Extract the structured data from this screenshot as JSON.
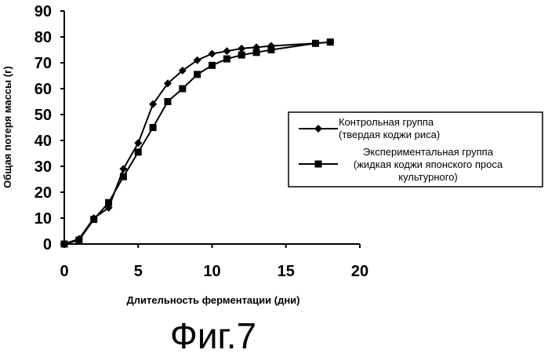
{
  "chart_data": {
    "type": "line",
    "xlabel": "Длительность ферментации (дни)",
    "ylabel": "Общая потеря массы (г)",
    "xlim": [
      0,
      20
    ],
    "ylim": [
      0,
      90
    ],
    "x_ticks": [
      "0",
      "5",
      "10",
      "15",
      "20"
    ],
    "y_ticks": [
      "0",
      "10",
      "20",
      "30",
      "40",
      "50",
      "60",
      "70",
      "80",
      "90"
    ],
    "grid": false,
    "legend_position": "right",
    "series": [
      {
        "name_lines": [
          "Контрольная группа",
          "(твердая коджи риса)"
        ],
        "marker": "diamond",
        "color": "#000000",
        "points": [
          [
            0,
            0
          ],
          [
            1,
            2
          ],
          [
            2,
            10
          ],
          [
            3,
            14
          ],
          [
            4,
            29
          ],
          [
            5,
            39
          ],
          [
            6,
            54
          ],
          [
            7,
            62
          ],
          [
            8,
            67
          ],
          [
            9,
            71
          ],
          [
            10,
            73.5
          ],
          [
            11,
            74.5
          ],
          [
            12,
            75.5
          ],
          [
            13,
            76
          ],
          [
            14,
            76.5
          ],
          [
            17,
            77.5
          ],
          [
            18,
            78
          ]
        ]
      },
      {
        "name_lines": [
          "Экспериментальная группа",
          "(жидкая коджи японского проса",
          "культурного)"
        ],
        "marker": "square",
        "color": "#000000",
        "points": [
          [
            0,
            0
          ],
          [
            1,
            1.5
          ],
          [
            2,
            9.5
          ],
          [
            3,
            16
          ],
          [
            4,
            26
          ],
          [
            5,
            35.5
          ],
          [
            6,
            45
          ],
          [
            7,
            55
          ],
          [
            8,
            60
          ],
          [
            9,
            65.5
          ],
          [
            10,
            69
          ],
          [
            11,
            71.5
          ],
          [
            12,
            73
          ],
          [
            13,
            74
          ],
          [
            14,
            75
          ],
          [
            17,
            77.5
          ],
          [
            18,
            78
          ]
        ]
      }
    ]
  },
  "caption": "Фиг.7"
}
